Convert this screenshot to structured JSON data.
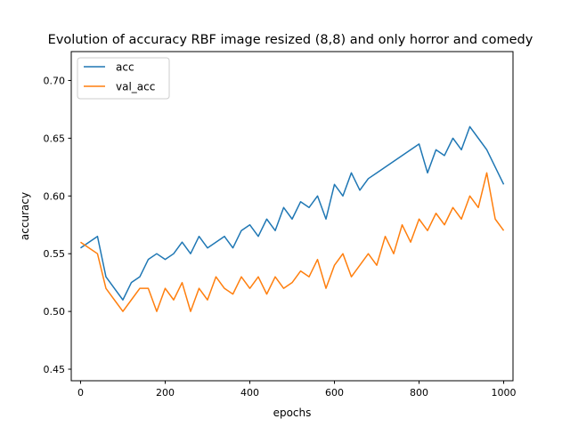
{
  "chart_data": {
    "type": "line",
    "title": "Evolution of accuracy RBF image resized (8,8) and only horror and comedy",
    "xlabel": "epochs",
    "ylabel": "accuracy",
    "xlim": [
      -22,
      1022
    ],
    "ylim": [
      0.44,
      0.725
    ],
    "xticks": [
      0,
      200,
      400,
      600,
      800,
      1000
    ],
    "yticks": [
      0.45,
      0.5,
      0.55,
      0.6,
      0.65,
      0.7
    ],
    "ytick_labels": [
      "0.45",
      "0.50",
      "0.55",
      "0.60",
      "0.65",
      "0.70"
    ],
    "legend_position": "upper-left",
    "grid": false,
    "series": [
      {
        "name": "acc",
        "color": "#1f77b4",
        "x": [
          0,
          20,
          40,
          60,
          80,
          100,
          120,
          140,
          160,
          180,
          200,
          220,
          240,
          260,
          280,
          300,
          320,
          340,
          360,
          380,
          400,
          420,
          440,
          460,
          480,
          500,
          520,
          540,
          560,
          580,
          600,
          620,
          640,
          660,
          680,
          700,
          720,
          740,
          760,
          780,
          800,
          820,
          840,
          860,
          880,
          900,
          920,
          940,
          960,
          980,
          1000
        ],
        "y": [
          0.555,
          0.56,
          0.565,
          0.53,
          0.52,
          0.51,
          0.525,
          0.53,
          0.545,
          0.55,
          0.545,
          0.55,
          0.56,
          0.55,
          0.565,
          0.555,
          0.56,
          0.565,
          0.555,
          0.57,
          0.575,
          0.565,
          0.58,
          0.57,
          0.59,
          0.58,
          0.595,
          0.59,
          0.6,
          0.58,
          0.61,
          0.6,
          0.62,
          0.605,
          0.615,
          0.62,
          0.625,
          0.63,
          0.635,
          0.64,
          0.645,
          0.62,
          0.64,
          0.635,
          0.65,
          0.64,
          0.66,
          0.65,
          0.64,
          0.625,
          0.61
        ]
      },
      {
        "name": "val_acc",
        "color": "#ff7f0e",
        "x": [
          0,
          20,
          40,
          60,
          80,
          100,
          120,
          140,
          160,
          180,
          200,
          220,
          240,
          260,
          280,
          300,
          320,
          340,
          360,
          380,
          400,
          420,
          440,
          460,
          480,
          500,
          520,
          540,
          560,
          580,
          600,
          620,
          640,
          660,
          680,
          700,
          720,
          740,
          760,
          780,
          800,
          820,
          840,
          860,
          880,
          900,
          920,
          940,
          960,
          980,
          1000
        ],
        "y": [
          0.56,
          0.555,
          0.55,
          0.52,
          0.51,
          0.5,
          0.51,
          0.52,
          0.52,
          0.5,
          0.52,
          0.51,
          0.525,
          0.5,
          0.52,
          0.51,
          0.53,
          0.52,
          0.515,
          0.53,
          0.52,
          0.53,
          0.515,
          0.53,
          0.52,
          0.525,
          0.535,
          0.53,
          0.545,
          0.52,
          0.54,
          0.55,
          0.53,
          0.54,
          0.55,
          0.54,
          0.565,
          0.55,
          0.575,
          0.56,
          0.58,
          0.57,
          0.585,
          0.575,
          0.59,
          0.58,
          0.6,
          0.59,
          0.62,
          0.58,
          0.57
        ]
      }
    ]
  }
}
